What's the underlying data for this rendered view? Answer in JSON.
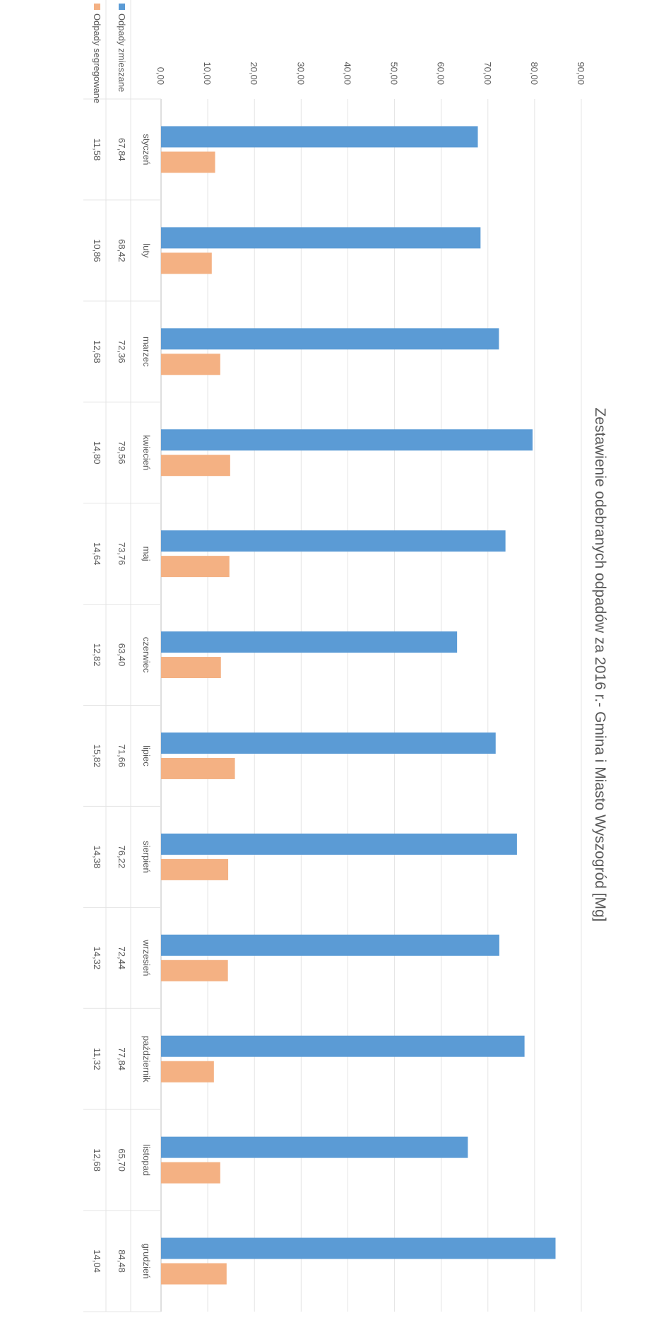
{
  "chart_data": {
    "type": "bar",
    "title": "Zestawienie odebranych odpadów za 2016 r.- Gmina i Miasto Wyszogród [Mg]",
    "categories": [
      "styczeń",
      "luty",
      "marzec",
      "kwiecień",
      "maj",
      "czerwiec",
      "lipiec",
      "sierpień",
      "wrzesień",
      "październik",
      "listopad",
      "grudzień"
    ],
    "series": [
      {
        "name": "Odpady zmieszane",
        "color": "#5B9BD5",
        "values": [
          67.84,
          68.42,
          72.36,
          79.56,
          73.76,
          63.4,
          71.66,
          76.22,
          72.44,
          77.84,
          65.7,
          84.48
        ],
        "labels": [
          "67,84",
          "68,42",
          "72,36",
          "79,56",
          "73,76",
          "63,40",
          "71,66",
          "76,22",
          "72,44",
          "77,84",
          "65,70",
          "84,48"
        ]
      },
      {
        "name": "Odpady segregowane",
        "color": "#F4B183",
        "values": [
          11.58,
          10.86,
          12.68,
          14.8,
          14.64,
          12.82,
          15.82,
          14.38,
          14.32,
          11.32,
          12.68,
          14.04
        ],
        "labels": [
          "11,58",
          "10,86",
          "12,68",
          "14,80",
          "14,64",
          "12,82",
          "15,82",
          "14,38",
          "14,32",
          "11,32",
          "12,68",
          "14,04"
        ]
      }
    ],
    "ylim": [
      0,
      90
    ],
    "yticks": [
      "0,00",
      "10,00",
      "20,00",
      "30,00",
      "40,00",
      "50,00",
      "60,00",
      "70,00",
      "80,00",
      "90,00"
    ],
    "grid": true,
    "legend_position": "bottom-left, data table",
    "orientation": "rotated 90° clockwise on page"
  }
}
